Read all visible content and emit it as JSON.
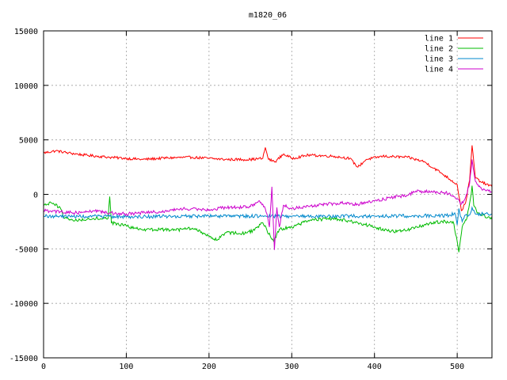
{
  "chart_data": {
    "type": "line",
    "title": "m1820_06",
    "xlabel": "",
    "ylabel": "",
    "xlim": [
      0,
      542
    ],
    "ylim": [
      -15000,
      15000
    ],
    "xticks": [
      0,
      100,
      200,
      300,
      400,
      500
    ],
    "yticks": [
      -15000,
      -10000,
      -5000,
      0,
      5000,
      10000,
      15000
    ],
    "x_tick_labels": [
      "0",
      "100",
      "200",
      "300",
      "400",
      "500"
    ],
    "y_tick_labels": [
      "-15000",
      "-10000",
      "-5000",
      "0",
      "5000",
      "10000",
      "15000"
    ],
    "grid": true,
    "legend_position": "top-right",
    "series": [
      {
        "name": "line 1",
        "color": "#ff0000",
        "noise": 120,
        "points": [
          [
            0,
            3800
          ],
          [
            15,
            4000
          ],
          [
            30,
            3800
          ],
          [
            50,
            3600
          ],
          [
            80,
            3400
          ],
          [
            100,
            3300
          ],
          [
            120,
            3200
          ],
          [
            150,
            3350
          ],
          [
            180,
            3400
          ],
          [
            200,
            3300
          ],
          [
            220,
            3200
          ],
          [
            250,
            3200
          ],
          [
            265,
            3300
          ],
          [
            268,
            4300
          ],
          [
            272,
            3200
          ],
          [
            280,
            3000
          ],
          [
            290,
            3700
          ],
          [
            300,
            3300
          ],
          [
            320,
            3600
          ],
          [
            350,
            3500
          ],
          [
            370,
            3300
          ],
          [
            380,
            2500
          ],
          [
            390,
            3200
          ],
          [
            410,
            3500
          ],
          [
            440,
            3400
          ],
          [
            460,
            3000
          ],
          [
            480,
            2000
          ],
          [
            500,
            900
          ],
          [
            505,
            -1500
          ],
          [
            510,
            -800
          ],
          [
            515,
            1300
          ],
          [
            518,
            4500
          ],
          [
            522,
            1500
          ],
          [
            530,
            1100
          ],
          [
            542,
            700
          ]
        ]
      },
      {
        "name": "line 2",
        "color": "#00bb00",
        "noise": 150,
        "points": [
          [
            0,
            -1000
          ],
          [
            10,
            -800
          ],
          [
            20,
            -1200
          ],
          [
            25,
            -2200
          ],
          [
            40,
            -2400
          ],
          [
            60,
            -2200
          ],
          [
            78,
            -2200
          ],
          [
            80,
            -200
          ],
          [
            82,
            -2600
          ],
          [
            100,
            -2900
          ],
          [
            120,
            -3300
          ],
          [
            140,
            -3200
          ],
          [
            160,
            -3300
          ],
          [
            180,
            -3100
          ],
          [
            200,
            -3800
          ],
          [
            210,
            -4200
          ],
          [
            220,
            -3500
          ],
          [
            240,
            -3600
          ],
          [
            255,
            -3300
          ],
          [
            265,
            -2600
          ],
          [
            270,
            -3300
          ],
          [
            278,
            -4300
          ],
          [
            285,
            -3200
          ],
          [
            300,
            -3000
          ],
          [
            320,
            -2400
          ],
          [
            350,
            -2200
          ],
          [
            380,
            -2600
          ],
          [
            400,
            -3000
          ],
          [
            420,
            -3400
          ],
          [
            440,
            -3300
          ],
          [
            460,
            -2800
          ],
          [
            480,
            -2500
          ],
          [
            495,
            -2500
          ],
          [
            500,
            -4300
          ],
          [
            502,
            -5300
          ],
          [
            506,
            -3000
          ],
          [
            512,
            -2100
          ],
          [
            516,
            -400
          ],
          [
            518,
            800
          ],
          [
            520,
            -1000
          ],
          [
            525,
            -1700
          ],
          [
            542,
            -2300
          ]
        ]
      },
      {
        "name": "line 3",
        "color": "#0088cc",
        "noise": 160,
        "points": [
          [
            0,
            -2000
          ],
          [
            100,
            -2050
          ],
          [
            200,
            -2000
          ],
          [
            300,
            -2000
          ],
          [
            400,
            -2000
          ],
          [
            490,
            -1950
          ],
          [
            497,
            -1700
          ],
          [
            500,
            -2800
          ],
          [
            502,
            -1300
          ],
          [
            506,
            -2500
          ],
          [
            510,
            -1900
          ],
          [
            515,
            -1900
          ],
          [
            518,
            -1200
          ],
          [
            522,
            -1800
          ],
          [
            542,
            -1800
          ]
        ]
      },
      {
        "name": "line 4",
        "color": "#cc00cc",
        "noise": 150,
        "points": [
          [
            0,
            -1500
          ],
          [
            20,
            -1600
          ],
          [
            40,
            -1700
          ],
          [
            60,
            -1500
          ],
          [
            80,
            -1700
          ],
          [
            100,
            -1800
          ],
          [
            120,
            -1700
          ],
          [
            140,
            -1600
          ],
          [
            160,
            -1400
          ],
          [
            180,
            -1300
          ],
          [
            200,
            -1400
          ],
          [
            220,
            -1200
          ],
          [
            240,
            -1200
          ],
          [
            255,
            -1000
          ],
          [
            260,
            -600
          ],
          [
            265,
            -900
          ],
          [
            270,
            -1800
          ],
          [
            273,
            -3000
          ],
          [
            276,
            700
          ],
          [
            279,
            -5100
          ],
          [
            282,
            -1200
          ],
          [
            285,
            -3000
          ],
          [
            290,
            -1000
          ],
          [
            300,
            -1300
          ],
          [
            320,
            -1100
          ],
          [
            340,
            -900
          ],
          [
            360,
            -800
          ],
          [
            380,
            -900
          ],
          [
            400,
            -600
          ],
          [
            420,
            -300
          ],
          [
            440,
            -100
          ],
          [
            450,
            300
          ],
          [
            470,
            200
          ],
          [
            490,
            100
          ],
          [
            500,
            -400
          ],
          [
            505,
            -900
          ],
          [
            510,
            -300
          ],
          [
            515,
            1000
          ],
          [
            518,
            3200
          ],
          [
            522,
            1200
          ],
          [
            530,
            400
          ],
          [
            542,
            200
          ]
        ]
      }
    ]
  }
}
